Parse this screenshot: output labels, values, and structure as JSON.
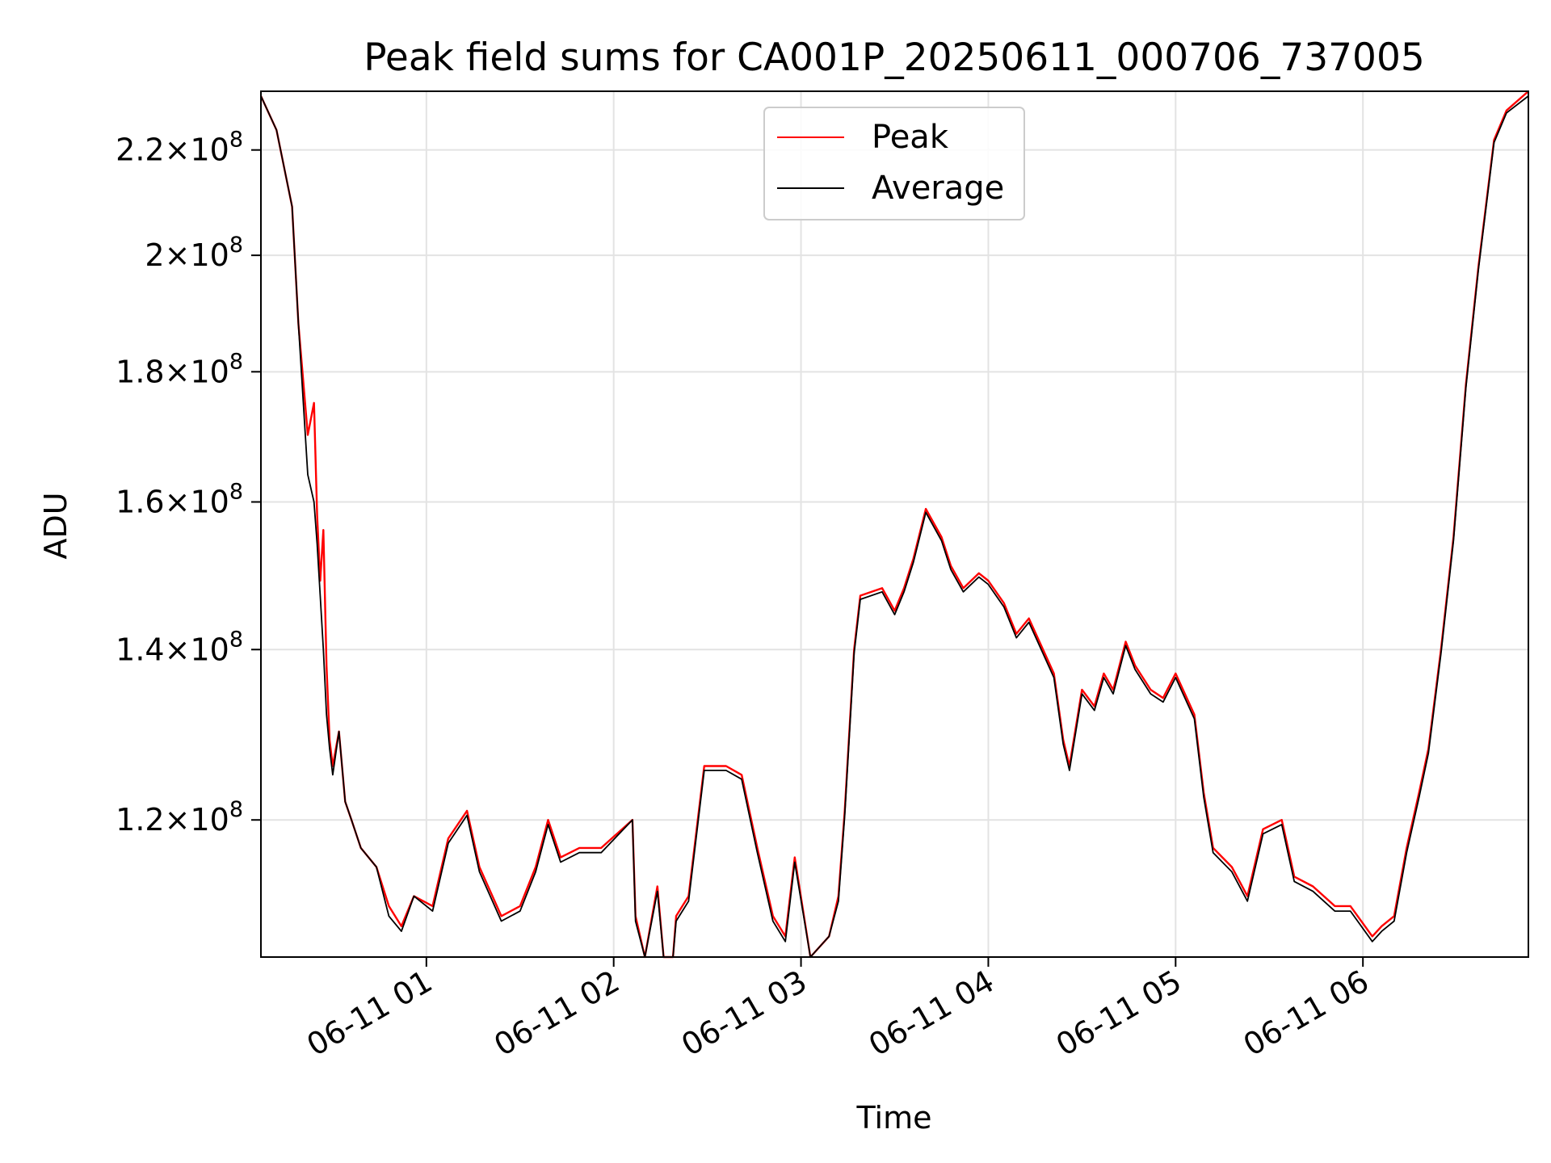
{
  "chart_data": {
    "type": "line",
    "title": "Peak field sums for CA001P_20250611_000706_737005",
    "xlabel": "Time",
    "ylabel": "ADU",
    "x_unit": "hours",
    "xlim": [
      "2025-06-11 00:07",
      "2025-06-11 06:53"
    ],
    "ylim": [
      106000000.0,
      232000000.0
    ],
    "y_scale": "log",
    "grid": true,
    "legend_position": "top-center",
    "x_ticks": [
      {
        "value": "2025-06-11 01:00",
        "label": "06-11 01"
      },
      {
        "value": "2025-06-11 02:00",
        "label": "06-11 02"
      },
      {
        "value": "2025-06-11 03:00",
        "label": "06-11 03"
      },
      {
        "value": "2025-06-11 04:00",
        "label": "06-11 04"
      },
      {
        "value": "2025-06-11 05:00",
        "label": "06-11 05"
      },
      {
        "value": "2025-06-11 06:00",
        "label": "06-11 06"
      }
    ],
    "y_ticks": [
      {
        "value": 120000000.0,
        "mantissa": "1.2",
        "exponent": "8"
      },
      {
        "value": 140000000.0,
        "mantissa": "1.4",
        "exponent": "8"
      },
      {
        "value": 160000000.0,
        "mantissa": "1.6",
        "exponent": "8"
      },
      {
        "value": 180000000.0,
        "mantissa": "1.8",
        "exponent": "8"
      },
      {
        "value": 200000000.0,
        "mantissa": "2",
        "exponent": "8"
      },
      {
        "value": 220000000.0,
        "mantissa": "2.2",
        "exponent": "8"
      }
    ],
    "series": [
      {
        "name": "Peak",
        "color": "#ff0000",
        "x": [
          "2025-06-11 00:07",
          "2025-06-11 00:12",
          "2025-06-11 00:17",
          "2025-06-11 00:19",
          "2025-06-11 00:22",
          "2025-06-11 00:24",
          "2025-06-11 00:25",
          "2025-06-11 00:26",
          "2025-06-11 00:27",
          "2025-06-11 00:28",
          "2025-06-11 00:29",
          "2025-06-11 00:30",
          "2025-06-11 00:32",
          "2025-06-11 00:34",
          "2025-06-11 00:36",
          "2025-06-11 00:39",
          "2025-06-11 00:44",
          "2025-06-11 00:48",
          "2025-06-11 00:52",
          "2025-06-11 00:56",
          "2025-06-11 01:02",
          "2025-06-11 01:07",
          "2025-06-11 01:13",
          "2025-06-11 01:17",
          "2025-06-11 01:24",
          "2025-06-11 01:30",
          "2025-06-11 01:35",
          "2025-06-11 01:39",
          "2025-06-11 01:43",
          "2025-06-11 01:49",
          "2025-06-11 01:56",
          "2025-06-11 02:06",
          "2025-06-11 02:07",
          "2025-06-11 02:10",
          "2025-06-11 02:14",
          "2025-06-11 02:16",
          "2025-06-11 02:19",
          "2025-06-11 02:20",
          "2025-06-11 02:22",
          "2025-06-11 02:24",
          "2025-06-11 02:29",
          "2025-06-11 02:36",
          "2025-06-11 02:41",
          "2025-06-11 02:46",
          "2025-06-11 02:51",
          "2025-06-11 02:55",
          "2025-06-11 02:58",
          "2025-06-11 03:03",
          "2025-06-11 03:09",
          "2025-06-11 03:12",
          "2025-06-11 03:14",
          "2025-06-11 03:17",
          "2025-06-11 03:19",
          "2025-06-11 03:26",
          "2025-06-11 03:30",
          "2025-06-11 03:33",
          "2025-06-11 03:36",
          "2025-06-11 03:40",
          "2025-06-11 03:45",
          "2025-06-11 03:48",
          "2025-06-11 03:52",
          "2025-06-11 03:57",
          "2025-06-11 04:00",
          "2025-06-11 04:05",
          "2025-06-11 04:09",
          "2025-06-11 04:13",
          "2025-06-11 04:21",
          "2025-06-11 04:24",
          "2025-06-11 04:26",
          "2025-06-11 04:30",
          "2025-06-11 04:34",
          "2025-06-11 04:37",
          "2025-06-11 04:40",
          "2025-06-11 04:44",
          "2025-06-11 04:47",
          "2025-06-11 04:52",
          "2025-06-11 04:56",
          "2025-06-11 05:00",
          "2025-06-11 05:06",
          "2025-06-11 05:09",
          "2025-06-11 05:12",
          "2025-06-11 05:18",
          "2025-06-11 05:23",
          "2025-06-11 05:28",
          "2025-06-11 05:34",
          "2025-06-11 05:38",
          "2025-06-11 05:44",
          "2025-06-11 05:51",
          "2025-06-11 05:56",
          "2025-06-11 06:03",
          "2025-06-11 06:06",
          "2025-06-11 06:10",
          "2025-06-11 06:14",
          "2025-06-11 06:18",
          "2025-06-11 06:21",
          "2025-06-11 06:25",
          "2025-06-11 06:29",
          "2025-06-11 06:33",
          "2025-06-11 06:37",
          "2025-06-11 06:42",
          "2025-06-11 06:46",
          "2025-06-11 06:53"
        ],
        "values": [
          231000000,
          224000000,
          209000000,
          188000000,
          170000000,
          175000000,
          158000000,
          149000000,
          156000000,
          138000000,
          129000000,
          126000000,
          130000000,
          122000000,
          120000000,
          117000000,
          115000000,
          111000000,
          109000000,
          112000000,
          111000000,
          118000000,
          121000000,
          115000000,
          110000000,
          111000000,
          115000000,
          120000000,
          116000000,
          117000000,
          117000000,
          120000000,
          110000000,
          106000000,
          113000000,
          106000000,
          106000000,
          110000000,
          111000000,
          112000000,
          126000000,
          126000000,
          125000000,
          117000000,
          110000000,
          108000000,
          116000000,
          106000000,
          108000000,
          112000000,
          121000000,
          140000000,
          147000000,
          148000000,
          145000000,
          148000000,
          152000000,
          159000000,
          155000000,
          151000000,
          148000000,
          150000000,
          149000000,
          146000000,
          142000000,
          144000000,
          137000000,
          129000000,
          126000000,
          135000000,
          133000000,
          137000000,
          135000000,
          141000000,
          138000000,
          135000000,
          134000000,
          137000000,
          132000000,
          123000000,
          117000000,
          115000000,
          112000000,
          119000000,
          120000000,
          114000000,
          113000000,
          111000000,
          111000000,
          108000000,
          109000000,
          110000000,
          117000000,
          123000000,
          128000000,
          140000000,
          155000000,
          178000000,
          198000000,
          222000000,
          228000000,
          232000000
        ]
      },
      {
        "name": "Average",
        "color": "#000000",
        "x": [
          "2025-06-11 00:07",
          "2025-06-11 00:12",
          "2025-06-11 00:17",
          "2025-06-11 00:19",
          "2025-06-11 00:22",
          "2025-06-11 00:24",
          "2025-06-11 00:25",
          "2025-06-11 00:26",
          "2025-06-11 00:27",
          "2025-06-11 00:28",
          "2025-06-11 00:29",
          "2025-06-11 00:30",
          "2025-06-11 00:32",
          "2025-06-11 00:34",
          "2025-06-11 00:36",
          "2025-06-11 00:39",
          "2025-06-11 00:44",
          "2025-06-11 00:48",
          "2025-06-11 00:52",
          "2025-06-11 00:56",
          "2025-06-11 01:02",
          "2025-06-11 01:07",
          "2025-06-11 01:13",
          "2025-06-11 01:17",
          "2025-06-11 01:24",
          "2025-06-11 01:30",
          "2025-06-11 01:35",
          "2025-06-11 01:39",
          "2025-06-11 01:43",
          "2025-06-11 01:49",
          "2025-06-11 01:56",
          "2025-06-11 02:06",
          "2025-06-11 02:07",
          "2025-06-11 02:10",
          "2025-06-11 02:14",
          "2025-06-11 02:16",
          "2025-06-11 02:19",
          "2025-06-11 02:20",
          "2025-06-11 02:22",
          "2025-06-11 02:24",
          "2025-06-11 02:29",
          "2025-06-11 02:36",
          "2025-06-11 02:41",
          "2025-06-11 02:46",
          "2025-06-11 02:51",
          "2025-06-11 02:55",
          "2025-06-11 02:58",
          "2025-06-11 03:03",
          "2025-06-11 03:09",
          "2025-06-11 03:12",
          "2025-06-11 03:14",
          "2025-06-11 03:17",
          "2025-06-11 03:19",
          "2025-06-11 03:26",
          "2025-06-11 03:30",
          "2025-06-11 03:33",
          "2025-06-11 03:36",
          "2025-06-11 03:40",
          "2025-06-11 03:45",
          "2025-06-11 03:48",
          "2025-06-11 03:52",
          "2025-06-11 03:57",
          "2025-06-11 04:00",
          "2025-06-11 04:05",
          "2025-06-11 04:09",
          "2025-06-11 04:13",
          "2025-06-11 04:21",
          "2025-06-11 04:24",
          "2025-06-11 04:26",
          "2025-06-11 04:30",
          "2025-06-11 04:34",
          "2025-06-11 04:37",
          "2025-06-11 04:40",
          "2025-06-11 04:44",
          "2025-06-11 04:47",
          "2025-06-11 04:52",
          "2025-06-11 04:56",
          "2025-06-11 05:00",
          "2025-06-11 05:06",
          "2025-06-11 05:09",
          "2025-06-11 05:12",
          "2025-06-11 05:18",
          "2025-06-11 05:23",
          "2025-06-11 05:28",
          "2025-06-11 05:34",
          "2025-06-11 05:38",
          "2025-06-11 05:44",
          "2025-06-11 05:51",
          "2025-06-11 05:56",
          "2025-06-11 06:03",
          "2025-06-11 06:06",
          "2025-06-11 06:10",
          "2025-06-11 06:14",
          "2025-06-11 06:18",
          "2025-06-11 06:21",
          "2025-06-11 06:25",
          "2025-06-11 06:29",
          "2025-06-11 06:33",
          "2025-06-11 06:37",
          "2025-06-11 06:42",
          "2025-06-11 06:46",
          "2025-06-11 06:53"
        ],
        "values": [
          231000000,
          224000000,
          209000000,
          188000000,
          164000000,
          160000000,
          154000000,
          147000000,
          140000000,
          132000000,
          128000000,
          125000000,
          130000000,
          122000000,
          120000000,
          117000000,
          115000000,
          110000000,
          108500000,
          112000000,
          110500000,
          117500000,
          120500000,
          114500000,
          109500000,
          110500000,
          114500000,
          119500000,
          115500000,
          116500000,
          116500000,
          120000000,
          109500000,
          106000000,
          112500000,
          106000000,
          106000000,
          109500000,
          110500000,
          111500000,
          125500000,
          125500000,
          124500000,
          116500000,
          109500000,
          107500000,
          115500000,
          106000000,
          108000000,
          111500000,
          120500000,
          139500000,
          146500000,
          147500000,
          144500000,
          147500000,
          151500000,
          158500000,
          154500000,
          150500000,
          147500000,
          149500000,
          148500000,
          145500000,
          141500000,
          143500000,
          136500000,
          128500000,
          125500000,
          134500000,
          132500000,
          136500000,
          134500000,
          140500000,
          137500000,
          134500000,
          133500000,
          136500000,
          131500000,
          122500000,
          116500000,
          114500000,
          111500000,
          118500000,
          119500000,
          113500000,
          112500000,
          110500000,
          110500000,
          107500000,
          108500000,
          109500000,
          116500000,
          122500000,
          127500000,
          139500000,
          154500000,
          177500000,
          197500000,
          221500000,
          227500000,
          231000000
        ]
      }
    ]
  }
}
